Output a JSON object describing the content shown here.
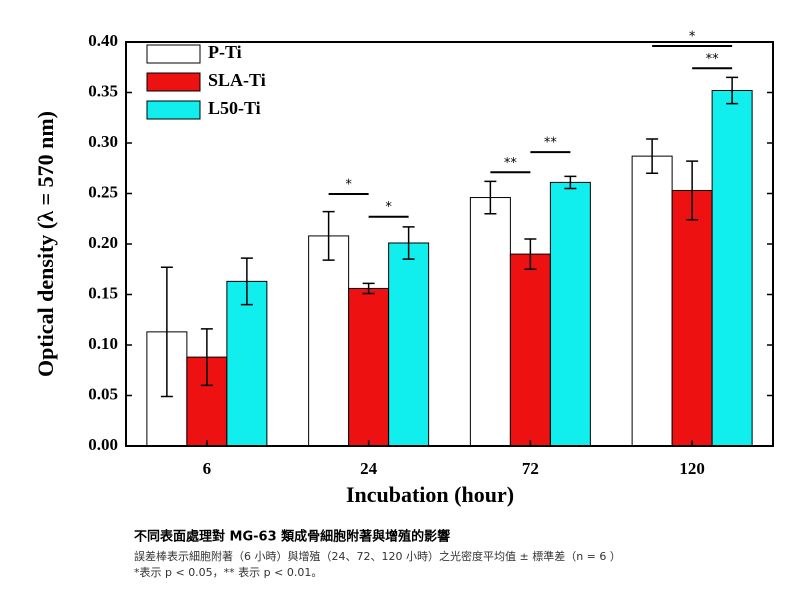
{
  "chart_data": {
    "type": "bar",
    "x_label": "Incubation (hour)",
    "y_label": "Optical density (λ = 570 nm)",
    "categories": [
      "6",
      "24",
      "72",
      "120"
    ],
    "series": [
      {
        "name": "P-Ti",
        "color": "#ffffff",
        "values": [
          0.113,
          0.208,
          0.246,
          0.287
        ],
        "errors": [
          0.064,
          0.024,
          0.016,
          0.017
        ]
      },
      {
        "name": "SLA-Ti",
        "color": "#ee1111",
        "values": [
          0.088,
          0.156,
          0.19,
          0.253
        ],
        "errors": [
          0.028,
          0.005,
          0.015,
          0.029
        ]
      },
      {
        "name": "L50-Ti",
        "color": "#11eeee",
        "values": [
          0.163,
          0.201,
          0.261,
          0.352
        ],
        "errors": [
          0.023,
          0.016,
          0.006,
          0.013
        ]
      }
    ],
    "ylim": [
      0,
      0.4
    ],
    "yticks": [
      {
        "value": 0,
        "label": "0.00"
      },
      {
        "value": 0.05,
        "label": "0.05"
      },
      {
        "value": 0.1,
        "label": "0.10"
      },
      {
        "value": 0.15,
        "label": "0.15"
      },
      {
        "value": 0.2,
        "label": "0.20"
      },
      {
        "value": 0.25,
        "label": "0.25"
      },
      {
        "value": 0.3,
        "label": "0.30"
      },
      {
        "value": 0.35,
        "label": "0.35"
      },
      {
        "value": 0.4,
        "label": "0.40"
      }
    ],
    "legend": "top-left",
    "annotations": [
      {
        "text": "*",
        "category": 1,
        "from": 0,
        "to": 1,
        "y": 0.2495
      },
      {
        "text": "*",
        "category": 1,
        "from": 1,
        "to": 2,
        "y": 0.227
      },
      {
        "text": "**",
        "category": 2,
        "from": 0,
        "to": 1,
        "y": 0.271
      },
      {
        "text": "**",
        "category": 2,
        "from": 1,
        "to": 2,
        "y": 0.291
      },
      {
        "text": "*",
        "category": 3,
        "from": 0,
        "to": 2,
        "y": 0.396
      },
      {
        "text": "**",
        "category": 3,
        "from": 1,
        "to": 2,
        "y": 0.374
      }
    ]
  },
  "caption": {
    "title": "不同表面處理對 MG-63 類成骨細胞附著與增殖的影響",
    "lines": [
      "誤差棒表示細胞附著（6 小時）與增殖（24、72、120 小時）之光密度平均值 ± 標準差（n = 6 ）",
      "*表示 p < 0.05，** 表示 p < 0.01。"
    ]
  }
}
